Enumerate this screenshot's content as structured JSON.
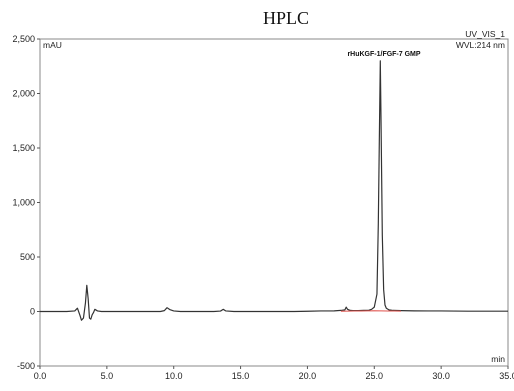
{
  "chart_data": {
    "type": "line",
    "title": "HPLC",
    "ylabel": "mAU",
    "xlabel": "min",
    "channel": "UV_VIS_1",
    "wavelength": "WVL:214 nm",
    "xlim": [
      0,
      35
    ],
    "ylim": [
      -500,
      2500
    ],
    "xticks": [
      0,
      5,
      10,
      15,
      20,
      25,
      30,
      35
    ],
    "xtick_labels": [
      "0.0",
      "5.0",
      "10.0",
      "15.0",
      "20.0",
      "25.0",
      "30.0",
      "35.0"
    ],
    "yticks": [
      -500,
      0,
      500,
      1000,
      1500,
      2000,
      2500
    ],
    "ytick_labels": [
      "-500",
      "0",
      "500",
      "1,000",
      "1,500",
      "2,000",
      "2,500"
    ],
    "peak_label": "rHuKGF-1/FGF-7 GMP",
    "series": [
      {
        "color": "#333333",
        "x": [
          0.0,
          1.0,
          2.0,
          2.6,
          2.8,
          3.0,
          3.1,
          3.25,
          3.4,
          3.5,
          3.6,
          3.7,
          3.8,
          3.9,
          4.0,
          4.1,
          4.3,
          4.6,
          5.0,
          6.0,
          7.0,
          8.0,
          9.0,
          9.3,
          9.5,
          9.7,
          10.0,
          10.5,
          11.0,
          12.0,
          13.0,
          13.5,
          13.7,
          13.9,
          14.5,
          15.0,
          16.0,
          17.0,
          18.0,
          19.0,
          20.0,
          21.0,
          22.0,
          22.5,
          22.8,
          22.9,
          23.0,
          23.2,
          23.4,
          23.8,
          24.2,
          24.6,
          24.8,
          25.0,
          25.2,
          25.3,
          25.4,
          25.45,
          25.5,
          25.6,
          25.7,
          25.8,
          25.9,
          26.1,
          26.4,
          27.0,
          28.0,
          29.0,
          30.0,
          31.0,
          32.0,
          33.0,
          34.0,
          35.0
        ],
        "y": [
          0,
          0,
          0,
          5,
          30,
          -40,
          -80,
          -60,
          80,
          240,
          120,
          -60,
          -70,
          -30,
          -10,
          20,
          5,
          0,
          0,
          0,
          0,
          0,
          0,
          8,
          35,
          18,
          5,
          0,
          0,
          0,
          0,
          4,
          20,
          5,
          0,
          0,
          0,
          0,
          0,
          0,
          2,
          5,
          6,
          10,
          15,
          40,
          20,
          10,
          8,
          8,
          10,
          12,
          20,
          40,
          160,
          800,
          1800,
          2300,
          1800,
          700,
          200,
          60,
          30,
          15,
          10,
          8,
          6,
          5,
          5,
          4,
          3,
          3,
          3,
          3
        ]
      },
      {
        "color": "#e0504b",
        "x": [
          22.5,
          23.0,
          23.5,
          24.0,
          24.5,
          25.0,
          25.5,
          26.0,
          26.5,
          27.0
        ],
        "y": [
          2,
          3,
          4,
          5,
          6,
          7,
          6,
          5,
          4,
          3
        ]
      }
    ],
    "grid": false,
    "legend": "none"
  }
}
